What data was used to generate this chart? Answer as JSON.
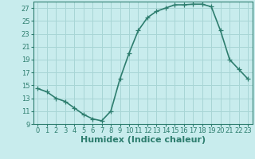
{
  "x": [
    0,
    1,
    2,
    3,
    4,
    5,
    6,
    7,
    8,
    9,
    10,
    11,
    12,
    13,
    14,
    15,
    16,
    17,
    18,
    19,
    20,
    21,
    22,
    23
  ],
  "y": [
    14.5,
    14.0,
    13.0,
    12.5,
    11.5,
    10.5,
    9.8,
    9.5,
    11.0,
    16.0,
    20.0,
    23.5,
    25.5,
    26.5,
    27.0,
    27.5,
    27.5,
    27.6,
    27.6,
    27.2,
    23.5,
    19.0,
    17.5,
    16.0
  ],
  "line_color": "#2d7d6e",
  "bg_color": "#c8eced",
  "grid_color": "#a8d5d5",
  "xlabel": "Humidex (Indice chaleur)",
  "xlim": [
    -0.5,
    23.5
  ],
  "ylim": [
    9,
    28
  ],
  "yticks": [
    9,
    11,
    13,
    15,
    17,
    19,
    21,
    23,
    25,
    27
  ],
  "xticks": [
    0,
    1,
    2,
    3,
    4,
    5,
    6,
    7,
    8,
    9,
    10,
    11,
    12,
    13,
    14,
    15,
    16,
    17,
    18,
    19,
    20,
    21,
    22,
    23
  ],
  "marker": "+",
  "linewidth": 1.2,
  "markersize": 4,
  "tick_fontsize": 6,
  "xlabel_fontsize": 8
}
